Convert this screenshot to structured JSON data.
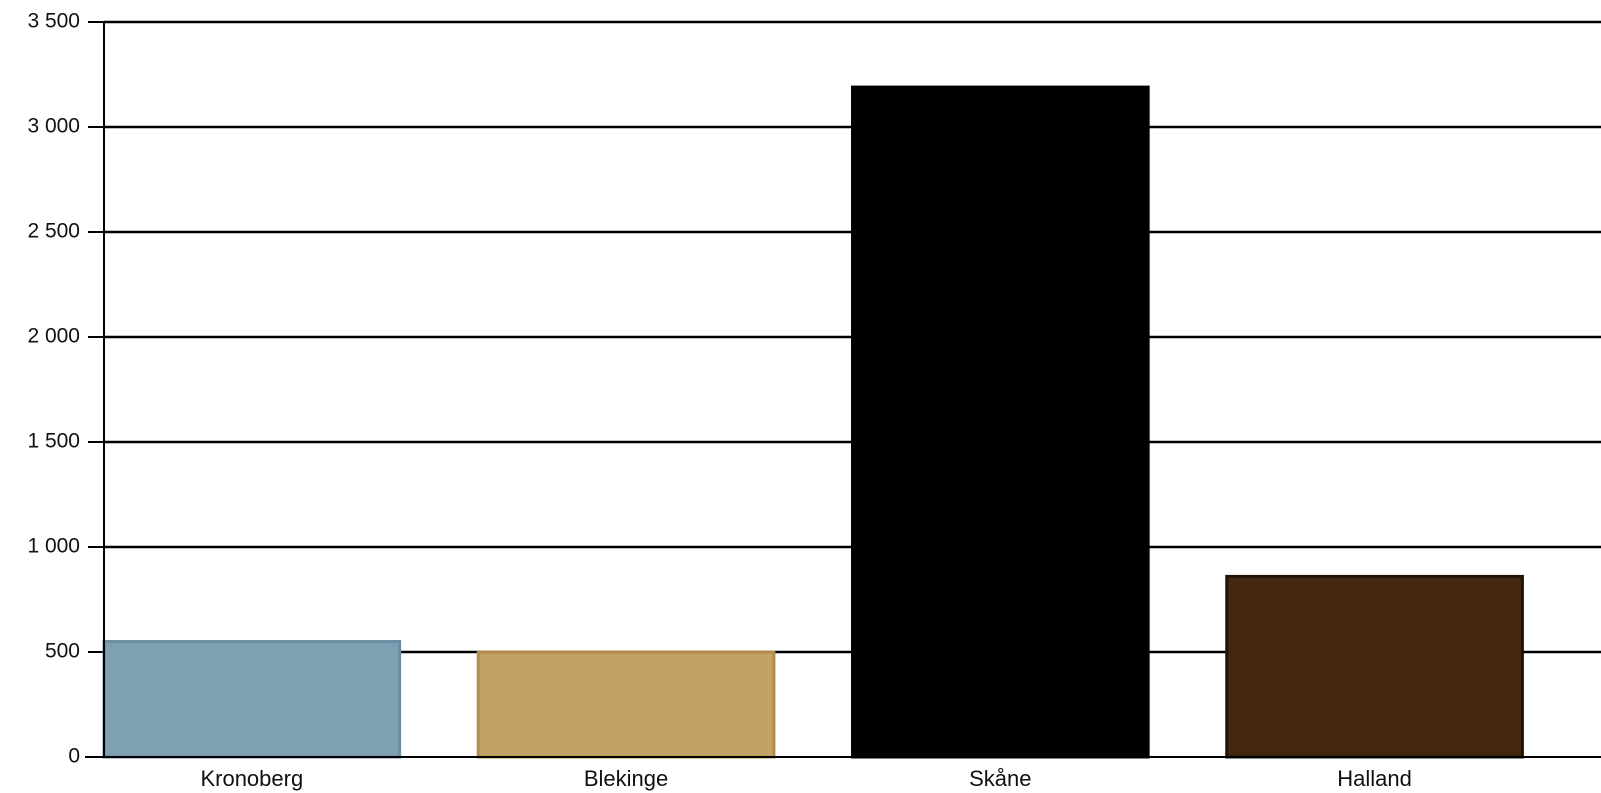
{
  "chart_data": {
    "type": "bar",
    "title": "",
    "xlabel": "",
    "ylabel": "",
    "categories": [
      "Kronoberg",
      "Blekinge",
      "Skåne",
      "Halland"
    ],
    "values": [
      550,
      500,
      3190,
      860
    ],
    "colors": [
      "#7f9fb2",
      "#c4a265",
      "#000000",
      "#43280f"
    ],
    "bar_edge_colors": [
      "#6b8ea3",
      "#b08b4c",
      "#000000",
      "#231305"
    ],
    "ylim": [
      0,
      3500
    ],
    "yticks": [
      0,
      500,
      1000,
      1500,
      2000,
      2500,
      3000,
      3500
    ],
    "ytick_labels": [
      "0",
      "500",
      "1 000",
      "1 500",
      "2 000",
      "2 500",
      "3 000",
      "3 500"
    ],
    "grid": true,
    "legend": "none"
  }
}
